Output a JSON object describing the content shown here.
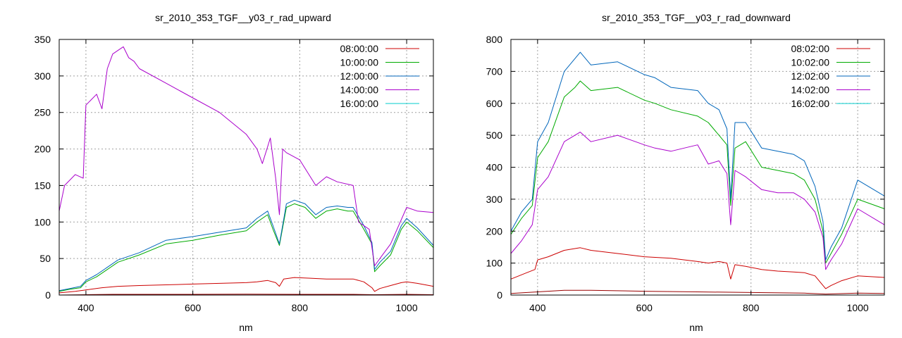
{
  "chart_data": [
    {
      "type": "line",
      "title": "sr_2010_353_TGF__y03_r_rad_upward",
      "xlabel": "nm",
      "ylabel": "",
      "xlim": [
        350,
        1050
      ],
      "ylim": [
        0,
        350
      ],
      "xticks": [
        400,
        600,
        800,
        1000
      ],
      "yticks": [
        0,
        50,
        100,
        150,
        200,
        250,
        300,
        350
      ],
      "grid": true,
      "legend_position": "top-right",
      "series": [
        {
          "name": "08:00:00",
          "color": "#cc0000",
          "x": [
            350,
            380,
            400,
            430,
            460,
            500,
            550,
            600,
            650,
            700,
            720,
            740,
            755,
            762,
            770,
            790,
            820,
            850,
            880,
            900,
            920,
            935,
            940,
            950,
            970,
            990,
            1000,
            1020,
            1050
          ],
          "y": [
            3,
            5,
            7,
            10,
            12,
            13,
            14,
            15,
            16,
            17,
            18,
            20,
            17,
            12,
            22,
            24,
            23,
            22,
            22,
            22,
            18,
            10,
            5,
            9,
            13,
            17,
            18,
            16,
            12
          ]
        },
        {
          "name": "",
          "color": "#990000",
          "x": [
            350,
            400,
            450,
            500,
            600,
            700,
            800,
            900,
            940,
            1000,
            1050
          ],
          "y": [
            0,
            0.5,
            1,
            1,
            1,
            1.2,
            1,
            1,
            0.5,
            1,
            0.5
          ]
        },
        {
          "name": "10:00:00",
          "color": "#00aa00",
          "x": [
            350,
            370,
            390,
            400,
            420,
            440,
            460,
            500,
            550,
            600,
            650,
            700,
            720,
            740,
            750,
            762,
            775,
            790,
            810,
            830,
            850,
            870,
            890,
            900,
            920,
            935,
            940,
            950,
            970,
            990,
            1000,
            1020,
            1050
          ],
          "y": [
            5,
            8,
            10,
            18,
            25,
            35,
            45,
            55,
            70,
            75,
            82,
            88,
            100,
            110,
            90,
            68,
            120,
            125,
            120,
            105,
            115,
            118,
            115,
            115,
            90,
            70,
            32,
            40,
            55,
            90,
            100,
            88,
            65
          ]
        },
        {
          "name": "12:00:00",
          "color": "#0066bb",
          "x": [
            350,
            370,
            390,
            400,
            420,
            440,
            460,
            500,
            550,
            600,
            650,
            700,
            720,
            740,
            750,
            762,
            775,
            790,
            810,
            830,
            850,
            870,
            890,
            900,
            920,
            935,
            940,
            950,
            970,
            990,
            1000,
            1020,
            1050
          ],
          "y": [
            6,
            9,
            12,
            20,
            28,
            38,
            48,
            58,
            75,
            80,
            86,
            92,
            105,
            115,
            95,
            70,
            125,
            130,
            125,
            110,
            120,
            122,
            120,
            120,
            95,
            72,
            35,
            45,
            60,
            95,
            105,
            92,
            68
          ]
        },
        {
          "name": "14:00:00",
          "color": "#aa00cc",
          "x": [
            350,
            360,
            380,
            395,
            400,
            420,
            430,
            440,
            450,
            460,
            470,
            480,
            490,
            500,
            550,
            600,
            650,
            700,
            720,
            730,
            745,
            755,
            762,
            768,
            775,
            800,
            830,
            850,
            870,
            900,
            910,
            930,
            940,
            950,
            970,
            1000,
            1020,
            1050
          ],
          "y": [
            115,
            150,
            165,
            160,
            260,
            275,
            255,
            310,
            330,
            335,
            340,
            325,
            320,
            310,
            290,
            270,
            250,
            220,
            200,
            180,
            215,
            160,
            110,
            200,
            195,
            185,
            150,
            162,
            155,
            150,
            100,
            90,
            40,
            50,
            70,
            120,
            115,
            113
          ]
        },
        {
          "name": "16:00:00",
          "color": "#00cccc",
          "x": [],
          "y": []
        }
      ]
    },
    {
      "type": "line",
      "title": "sr_2010_353_TGF__y03_r_rad_downward",
      "xlabel": "nm",
      "ylabel": "",
      "xlim": [
        350,
        1050
      ],
      "ylim": [
        0,
        800
      ],
      "xticks": [
        400,
        600,
        800,
        1000
      ],
      "yticks": [
        0,
        100,
        200,
        300,
        400,
        500,
        600,
        700,
        800
      ],
      "grid": true,
      "legend_position": "top-right",
      "series": [
        {
          "name": "08:02:00",
          "color": "#cc0000",
          "x": [
            350,
            380,
            395,
            400,
            420,
            450,
            480,
            500,
            550,
            600,
            650,
            700,
            720,
            740,
            755,
            762,
            770,
            790,
            820,
            850,
            880,
            900,
            920,
            935,
            940,
            950,
            970,
            1000,
            1050
          ],
          "y": [
            50,
            70,
            80,
            110,
            120,
            140,
            148,
            140,
            130,
            120,
            115,
            105,
            100,
            105,
            100,
            50,
            95,
            90,
            80,
            75,
            72,
            70,
            60,
            30,
            20,
            30,
            45,
            60,
            55
          ]
        },
        {
          "name": "",
          "color": "#990000",
          "x": [
            350,
            400,
            450,
            500,
            600,
            700,
            800,
            900,
            940,
            1000,
            1050
          ],
          "y": [
            5,
            10,
            15,
            15,
            12,
            10,
            8,
            6,
            3,
            6,
            5
          ]
        },
        {
          "name": "10:02:00",
          "color": "#00aa00",
          "x": [
            350,
            370,
            390,
            400,
            420,
            450,
            470,
            480,
            500,
            550,
            600,
            620,
            650,
            700,
            720,
            740,
            755,
            762,
            770,
            790,
            820,
            850,
            880,
            900,
            920,
            935,
            940,
            950,
            970,
            1000,
            1050
          ],
          "y": [
            190,
            240,
            280,
            430,
            480,
            620,
            650,
            670,
            640,
            650,
            610,
            600,
            580,
            560,
            540,
            500,
            470,
            280,
            460,
            480,
            400,
            390,
            380,
            360,
            300,
            200,
            100,
            130,
            190,
            300,
            270
          ]
        },
        {
          "name": "12:02:00",
          "color": "#0066bb",
          "x": [
            350,
            370,
            390,
            400,
            420,
            450,
            470,
            480,
            500,
            550,
            600,
            620,
            650,
            700,
            720,
            740,
            755,
            762,
            770,
            790,
            820,
            850,
            880,
            900,
            920,
            935,
            940,
            950,
            970,
            1000,
            1050
          ],
          "y": [
            200,
            260,
            300,
            480,
            540,
            700,
            740,
            760,
            720,
            730,
            690,
            680,
            650,
            640,
            600,
            580,
            520,
            300,
            540,
            540,
            460,
            450,
            440,
            420,
            340,
            230,
            110,
            150,
            210,
            360,
            310
          ]
        },
        {
          "name": "14:02:00",
          "color": "#aa00cc",
          "x": [
            350,
            370,
            390,
            400,
            420,
            450,
            470,
            480,
            500,
            550,
            600,
            620,
            650,
            700,
            720,
            740,
            755,
            762,
            770,
            790,
            820,
            850,
            880,
            900,
            920,
            935,
            940,
            950,
            970,
            1000,
            1050
          ],
          "y": [
            130,
            170,
            220,
            330,
            370,
            480,
            500,
            510,
            480,
            500,
            470,
            460,
            450,
            470,
            410,
            420,
            380,
            220,
            390,
            370,
            330,
            320,
            320,
            300,
            260,
            180,
            80,
            110,
            160,
            270,
            220
          ]
        },
        {
          "name": "16:02:00",
          "color": "#00cccc",
          "x": [],
          "y": []
        }
      ]
    }
  ]
}
